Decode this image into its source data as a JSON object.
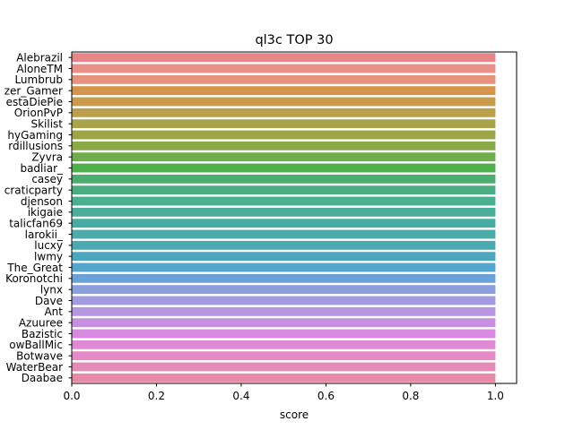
{
  "chart_data": {
    "type": "bar",
    "orientation": "horizontal",
    "title": "ql3c TOP 30",
    "xlabel": "score",
    "ylabel": "",
    "xlim": [
      0,
      1.05
    ],
    "xticks": [
      "0.0",
      "0.2",
      "0.4",
      "0.6",
      "0.8",
      "1.0"
    ],
    "grid": false,
    "categories": [
      "Alebrazil",
      "AloneTM",
      "Lumbrub",
      "zer_Gamer",
      "estaDiePie",
      "OrionPvP",
      "Skilist",
      "hyGaming",
      "rdillusions",
      "Zyvra",
      "badliar_",
      "casey",
      "cratic​party",
      "djenson",
      "ikigaie",
      "talicfan69",
      "larokii_",
      "lucxy",
      "lwmy",
      "The_Great",
      "Koronotchi",
      "lynx",
      "Dave",
      "Ant",
      "Azuuree",
      "Bazistic",
      "owBallMic",
      "Botwave",
      "WaterBear",
      "Daabae"
    ],
    "values": [
      1,
      1,
      1,
      1,
      1,
      1,
      1,
      1,
      1,
      1,
      1,
      1,
      1,
      1,
      1,
      1,
      1,
      1,
      1,
      1,
      1,
      1,
      1,
      1,
      1,
      1,
      1,
      1,
      1,
      1
    ],
    "colors": [
      "#e8878a",
      "#e8918a",
      "#e5937d",
      "#d59449",
      "#c99b4a",
      "#bb9f4b",
      "#a9a34a",
      "#9ca648",
      "#8aaa48",
      "#70ae4b",
      "#4db04a",
      "#4bae6e",
      "#4bae82",
      "#4aae91",
      "#49ad9a",
      "#48aca2",
      "#4aabaa",
      "#4ba9b2",
      "#4da7bc",
      "#56a6cc",
      "#6aa2d8",
      "#8b9fde",
      "#a29be0",
      "#b695e2",
      "#c68fe0",
      "#d68be0",
      "#e08ad6",
      "#e48bc8",
      "#e68bb8",
      "#e889a6"
    ]
  }
}
